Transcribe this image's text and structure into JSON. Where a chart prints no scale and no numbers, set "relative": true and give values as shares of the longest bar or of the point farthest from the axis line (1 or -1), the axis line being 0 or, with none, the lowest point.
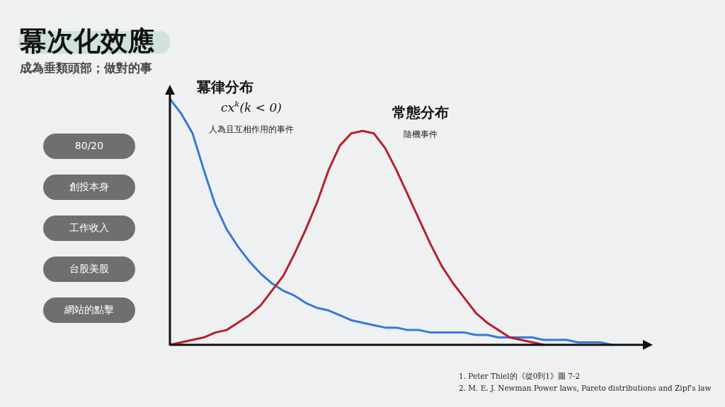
{
  "chart_data": {
    "type": "line",
    "relative": true,
    "title": "冪次化效應",
    "subtitle": "成為垂類頭部；做對的事",
    "categories": [
      null,
      null,
      null,
      null,
      null,
      null,
      null,
      null,
      null,
      null,
      null,
      null,
      null,
      null,
      null,
      null,
      null,
      null,
      null,
      null,
      null,
      null,
      null,
      null,
      null,
      null,
      null,
      null,
      null,
      null,
      null,
      null,
      null,
      null,
      null,
      null,
      null,
      null,
      null,
      null,
      null
    ],
    "series": [
      {
        "name": "冪律分布",
        "color": "#3a78d8",
        "values": [
          1.0,
          0.94,
          0.86,
          0.71,
          0.57,
          0.47,
          0.4,
          0.34,
          0.29,
          0.25,
          0.22,
          0.2,
          0.17,
          0.15,
          0.14,
          0.12,
          0.1,
          0.09,
          0.08,
          0.07,
          0.07,
          0.06,
          0.06,
          0.05,
          0.05,
          0.05,
          0.05,
          0.04,
          0.04,
          0.03,
          0.03,
          0.03,
          0.03,
          0.02,
          0.02,
          0.02,
          0.01,
          0.01,
          0.01,
          0.0,
          null
        ]
      },
      {
        "name": "常態分布",
        "color": "#b5202e",
        "values": [
          0.0,
          0.01,
          0.02,
          0.03,
          0.05,
          0.06,
          0.09,
          0.12,
          0.16,
          0.22,
          0.28,
          0.37,
          0.47,
          0.58,
          0.71,
          0.81,
          0.86,
          0.87,
          0.86,
          0.8,
          0.71,
          0.61,
          0.51,
          0.41,
          0.32,
          0.25,
          0.19,
          0.13,
          0.09,
          0.06,
          0.03,
          0.02,
          0.01,
          0.0,
          null,
          null,
          null,
          null,
          null,
          null,
          null
        ]
      }
    ],
    "annotations": [
      "80/20",
      "創投本身",
      "工作收入",
      "台股美股",
      "網站的點擊",
      "cx$^{k}$(k < 0)",
      "人為且互相作用的事件",
      "隨機事件",
      "1.    Peter Thiel的《從0到1》圖 7-2",
      "2.    M. E. J. Newman Power laws, Pareto distributions and Zipf's law"
    ]
  }
}
